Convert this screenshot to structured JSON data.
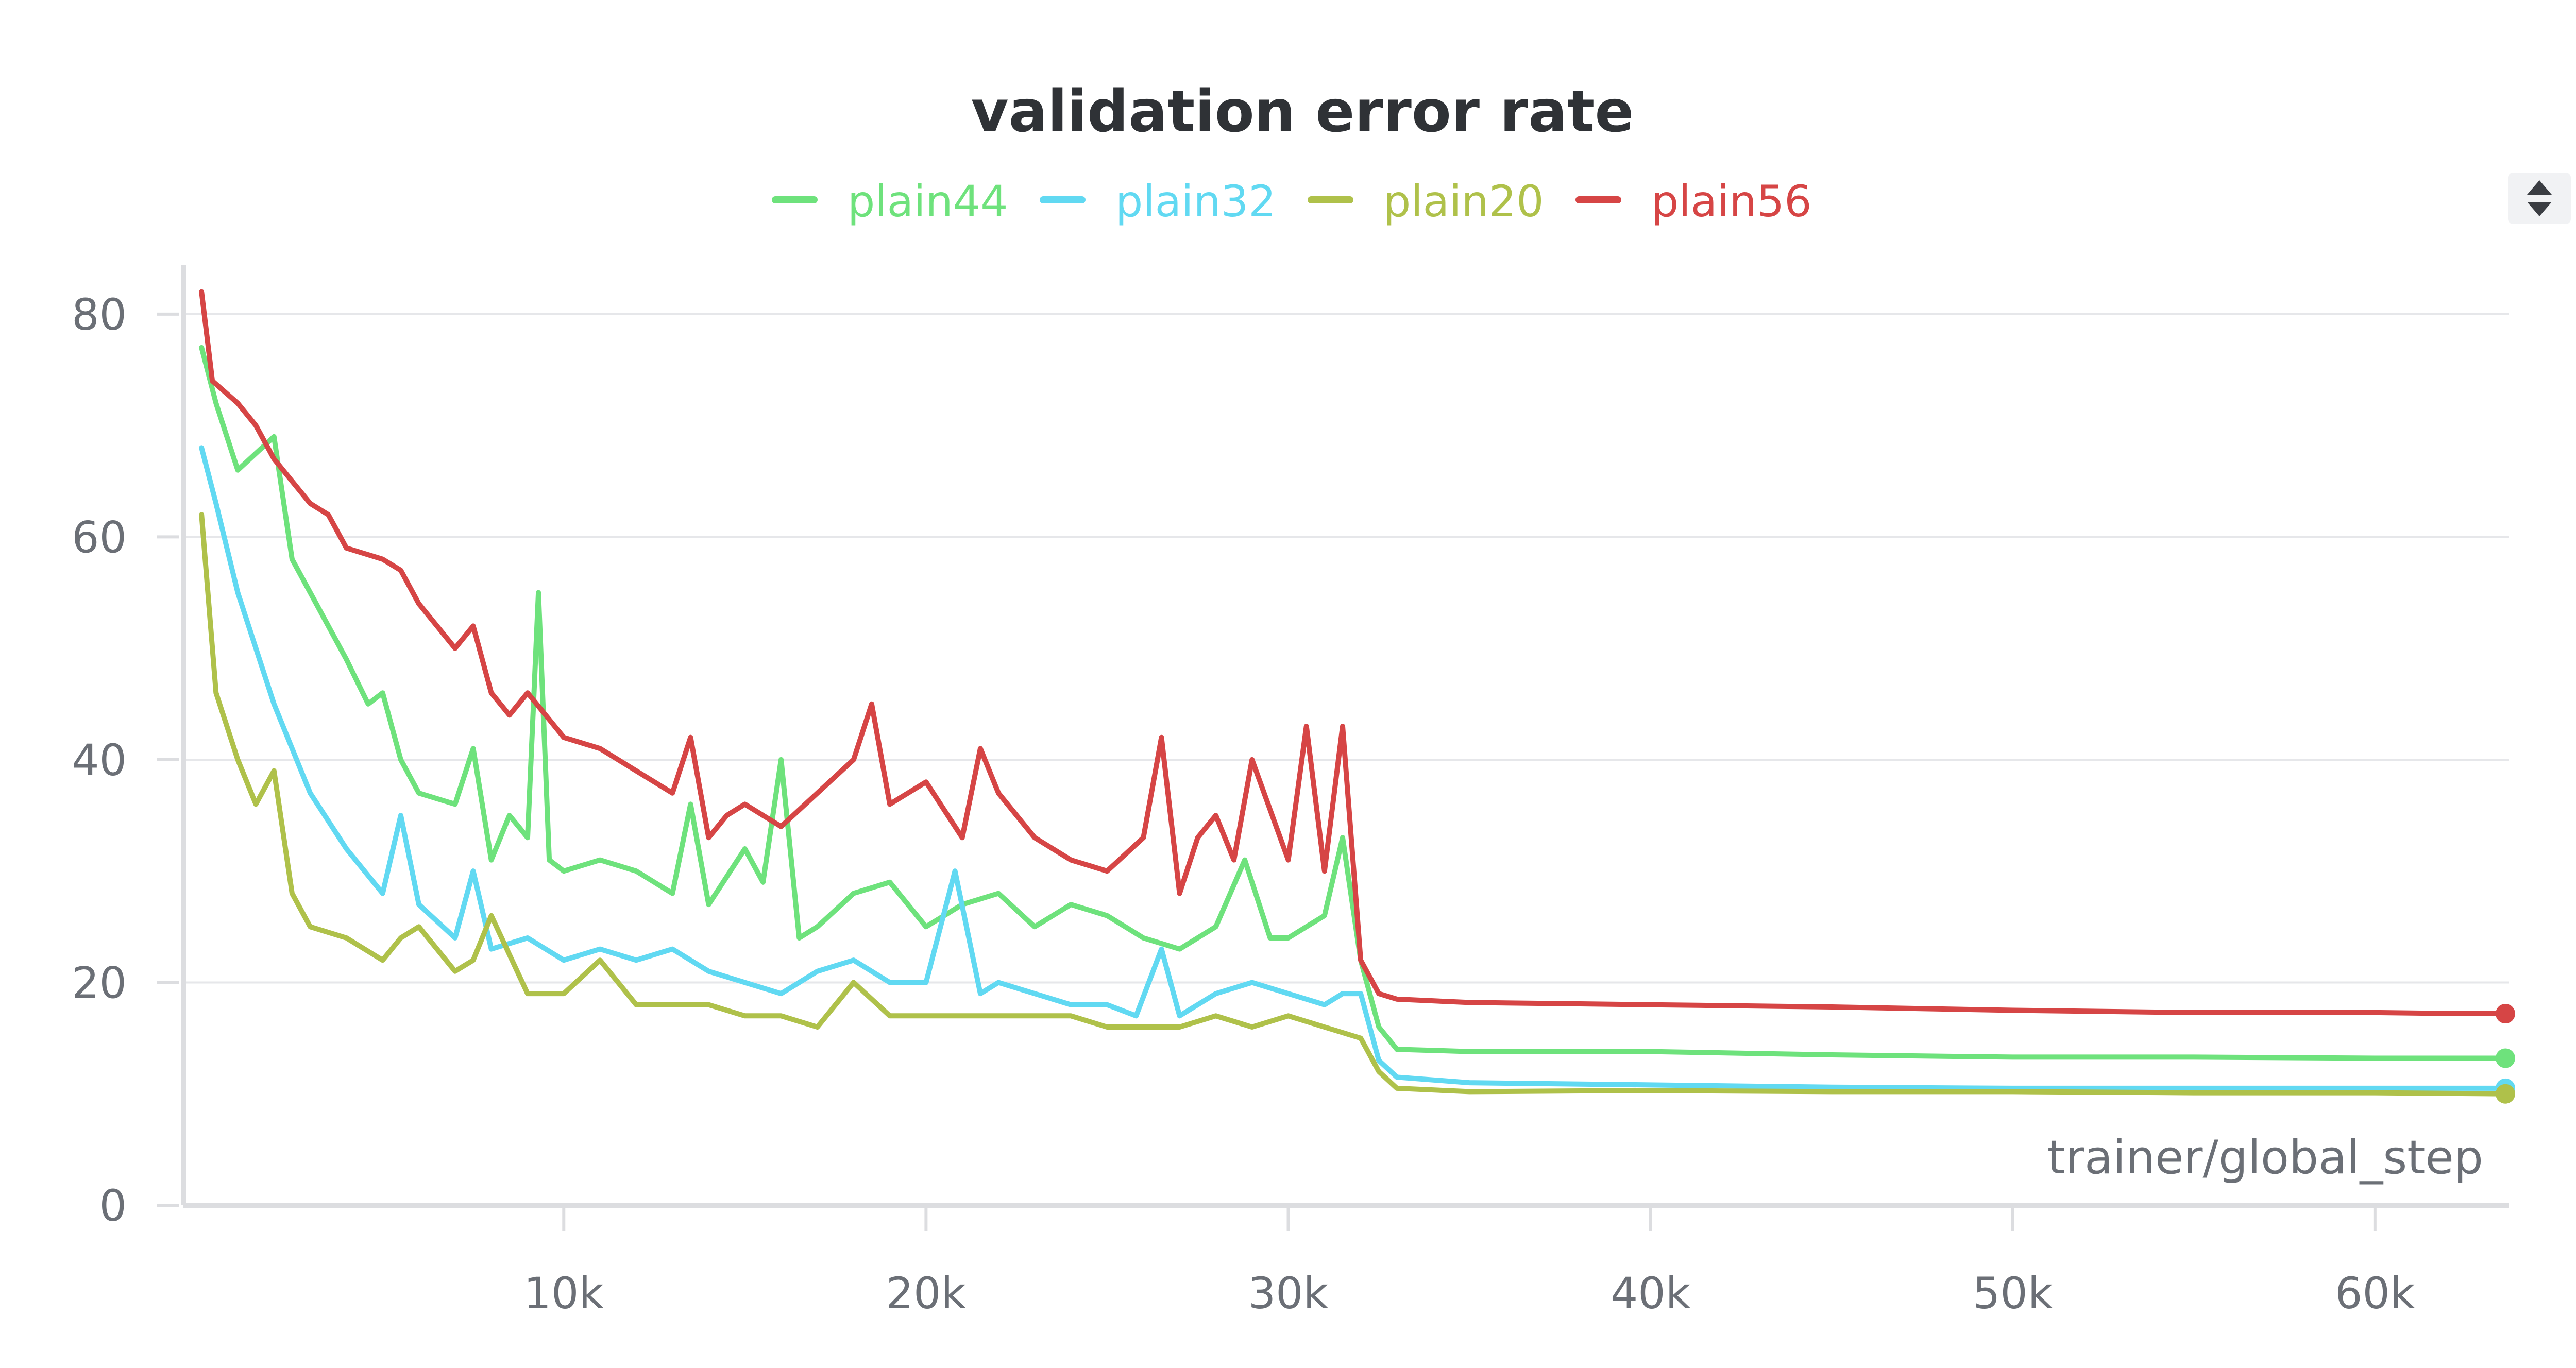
{
  "chart_data": {
    "type": "line",
    "title": "validation error rate",
    "xlabel": "trainer/global_step",
    "ylabel": "",
    "xlim": [
      -500,
      63700
    ],
    "ylim": [
      0,
      83
    ],
    "x_ticks": [
      10000,
      20000,
      30000,
      40000,
      50000,
      60000
    ],
    "x_tick_labels": [
      "10k",
      "20k",
      "30k",
      "40k",
      "50k",
      "60k"
    ],
    "y_ticks": [
      0,
      20,
      40,
      60,
      80
    ],
    "y_tick_labels": [
      "0",
      "20",
      "40",
      "60",
      "80"
    ],
    "grid": true,
    "legend_position": "top-center",
    "series": [
      {
        "name": "plain44",
        "color": "#6ee27c",
        "x": [
          0,
          400,
          1000,
          2000,
          2500,
          3000,
          4000,
          4600,
          5000,
          5500,
          6000,
          7000,
          7500,
          8000,
          8500,
          9000,
          9300,
          9600,
          10000,
          11000,
          12000,
          13000,
          13500,
          14000,
          15000,
          15500,
          16000,
          16500,
          17000,
          18000,
          19000,
          20000,
          21000,
          22000,
          23000,
          24000,
          25000,
          26000,
          27000,
          28000,
          28800,
          29500,
          30000,
          31000,
          31500,
          32000,
          32500,
          33000,
          35000,
          40000,
          45000,
          50000,
          55000,
          60000,
          63600
        ],
        "y": [
          77,
          72,
          66,
          69,
          58,
          55,
          49,
          45,
          46,
          40,
          37,
          36,
          41,
          31,
          35,
          33,
          55,
          31,
          30,
          31,
          30,
          28,
          36,
          27,
          32,
          29,
          40,
          24,
          25,
          28,
          29,
          25,
          27,
          28,
          25,
          27,
          26,
          24,
          23,
          25,
          31,
          24,
          24,
          26,
          33,
          22,
          16,
          14,
          13.8,
          13.8,
          13.5,
          13.3,
          13.3,
          13.2,
          13.2
        ]
      },
      {
        "name": "plain32",
        "color": "#61d9f2",
        "x": [
          0,
          400,
          1000,
          2000,
          3000,
          4000,
          5000,
          5500,
          6000,
          7000,
          7500,
          8000,
          9000,
          10000,
          11000,
          12000,
          13000,
          14000,
          15000,
          16000,
          17000,
          18000,
          19000,
          20000,
          20800,
          21500,
          22000,
          23000,
          24000,
          25000,
          25800,
          26500,
          27000,
          28000,
          29000,
          30000,
          31000,
          31500,
          32000,
          32500,
          33000,
          35000,
          40000,
          45000,
          50000,
          55000,
          60000,
          63600
        ],
        "y": [
          68,
          63,
          55,
          45,
          37,
          32,
          28,
          35,
          27,
          24,
          30,
          23,
          24,
          22,
          23,
          22,
          23,
          21,
          20,
          19,
          21,
          22,
          20,
          20,
          30,
          19,
          20,
          19,
          18,
          18,
          17,
          23,
          17,
          19,
          20,
          19,
          18,
          19,
          19,
          13,
          11.5,
          11,
          10.8,
          10.6,
          10.5,
          10.5,
          10.5,
          10.5
        ]
      },
      {
        "name": "plain20",
        "color": "#afc14a",
        "x": [
          0,
          400,
          1000,
          1500,
          2000,
          2500,
          3000,
          4000,
          5000,
          5500,
          6000,
          7000,
          7500,
          8000,
          9000,
          10000,
          11000,
          12000,
          13000,
          14000,
          15000,
          16000,
          17000,
          18000,
          19000,
          20000,
          21000,
          22000,
          23000,
          24000,
          25000,
          26000,
          27000,
          28000,
          29000,
          30000,
          31000,
          32000,
          32500,
          33000,
          35000,
          40000,
          45000,
          50000,
          55000,
          60000,
          63600
        ],
        "y": [
          62,
          46,
          40,
          36,
          39,
          28,
          25,
          24,
          22,
          24,
          25,
          21,
          22,
          26,
          19,
          19,
          22,
          18,
          18,
          18,
          17,
          17,
          16,
          20,
          17,
          17,
          17,
          17,
          17,
          17,
          16,
          16,
          16,
          17,
          16,
          17,
          16,
          15,
          12,
          10.5,
          10.2,
          10.3,
          10.2,
          10.2,
          10.1,
          10.1,
          10
        ]
      },
      {
        "name": "plain56",
        "color": "#d64545",
        "x": [
          0,
          300,
          1000,
          1500,
          2000,
          2500,
          3000,
          3500,
          4000,
          5000,
          5500,
          6000,
          6500,
          7000,
          7500,
          8000,
          8500,
          9000,
          10000,
          11000,
          12000,
          13000,
          13500,
          14000,
          14500,
          15000,
          16000,
          17000,
          18000,
          18500,
          19000,
          20000,
          21000,
          21500,
          22000,
          23000,
          24000,
          25000,
          26000,
          26500,
          27000,
          27500,
          28000,
          28500,
          29000,
          30000,
          30500,
          31000,
          31500,
          32000,
          32500,
          33000,
          35000,
          40000,
          45000,
          50000,
          55000,
          60000,
          62500,
          63600
        ],
        "y": [
          82,
          74,
          72,
          70,
          67,
          65,
          63,
          62,
          59,
          58,
          57,
          54,
          52,
          50,
          52,
          46,
          44,
          46,
          42,
          41,
          39,
          37,
          42,
          33,
          35,
          36,
          34,
          37,
          40,
          45,
          36,
          38,
          33,
          41,
          37,
          33,
          31,
          30,
          33,
          42,
          28,
          33,
          35,
          31,
          40,
          31,
          43,
          30,
          43,
          22,
          19,
          18.5,
          18.2,
          18,
          17.8,
          17.5,
          17.3,
          17.3,
          17.2,
          17.2
        ]
      }
    ]
  },
  "toolbar": {
    "sort_control_icon": "sort-arrows-icon"
  }
}
